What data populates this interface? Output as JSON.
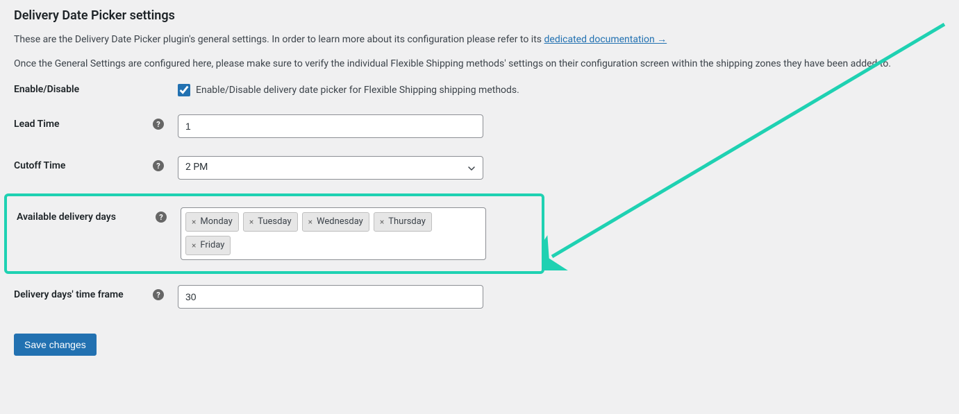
{
  "title": "Delivery Date Picker settings",
  "intro1_part1": "These are the Delivery Date Picker plugin's general settings. In order to learn more about its configuration please refer to its ",
  "intro1_link": "dedicated documentation →",
  "intro2": "Once the General Settings are configured here, please make sure to verify the individual Flexible Shipping methods' settings on their configuration screen within the shipping zones they have been added to.",
  "fields": {
    "enable": {
      "label": "Enable/Disable",
      "checkbox_label": "Enable/Disable delivery date picker for Flexible Shipping shipping methods.",
      "checked": true
    },
    "lead_time": {
      "label": "Lead Time",
      "value": "1"
    },
    "cutoff": {
      "label": "Cutoff Time",
      "value": "2 PM"
    },
    "available_days": {
      "label": "Available delivery days",
      "tags": [
        "Monday",
        "Tuesday",
        "Wednesday",
        "Thursday",
        "Friday"
      ]
    },
    "time_frame": {
      "label": "Delivery days' time frame",
      "value": "30"
    }
  },
  "save_button": "Save changes",
  "colors": {
    "highlight": "#1fd1b2",
    "primary": "#2271b1",
    "bg": "#f0f0f1"
  }
}
